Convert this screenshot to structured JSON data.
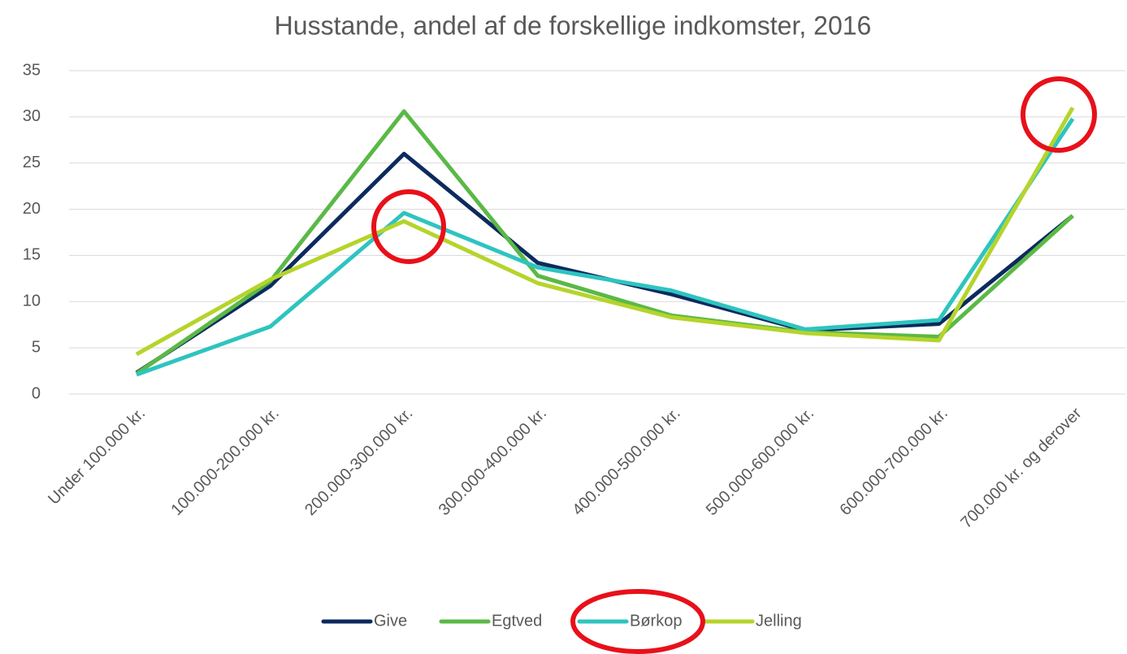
{
  "chart_data": {
    "type": "line",
    "title": "Husstande, andel af de forskellige indkomster, 2016",
    "categories": [
      "Under 100.000 kr.",
      "100.000-200.000 kr.",
      "200.000-300.000 kr.",
      "300.000-400.000 kr.",
      "400.000-500.000 kr.",
      "500.000-600.000 kr.",
      "600.000-700.000 kr.",
      "700.000 kr. og derover"
    ],
    "series": [
      {
        "name": "Give",
        "color": "#0d2a5e",
        "values": [
          2.3,
          11.7,
          26.0,
          14.2,
          10.8,
          6.9,
          7.6,
          19.3
        ]
      },
      {
        "name": "Egtved",
        "color": "#5ab946",
        "values": [
          2.2,
          12.2,
          30.6,
          12.8,
          8.5,
          6.7,
          6.2,
          19.3
        ]
      },
      {
        "name": "Børkop",
        "color": "#2ec4c0",
        "values": [
          2.1,
          7.3,
          19.6,
          13.7,
          11.2,
          7.0,
          8.0,
          29.8
        ]
      },
      {
        "name": "Jelling",
        "color": "#b5d42b",
        "values": [
          4.3,
          12.4,
          18.7,
          12.0,
          8.3,
          6.6,
          5.8,
          31.0
        ]
      }
    ],
    "ylim": [
      0,
      35
    ],
    "yticks": [
      0,
      5,
      10,
      15,
      20,
      25,
      30,
      35
    ],
    "grid": true,
    "legend": "bottom"
  }
}
